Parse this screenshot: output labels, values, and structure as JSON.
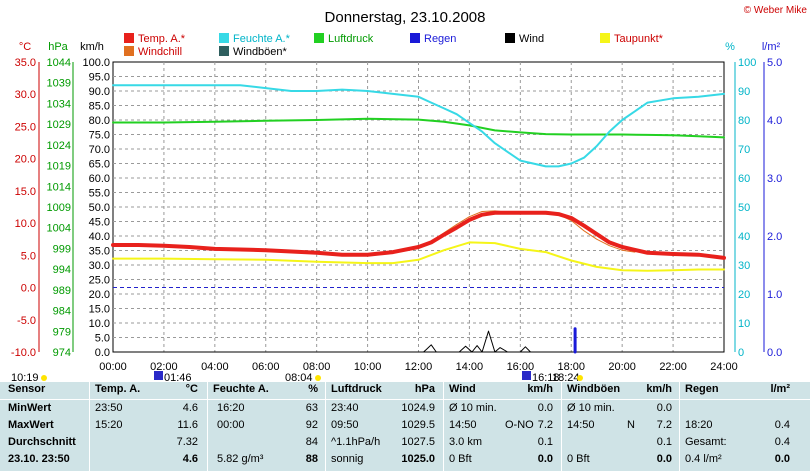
{
  "title": "Donnerstag, 23.10.2008",
  "credit": "© Weber Mike",
  "legend": [
    {
      "label": "Temp. A.*",
      "color": "#e8211c"
    },
    {
      "label": "Feuchte A.*",
      "color": "#37d9e6"
    },
    {
      "label": "Luftdruck",
      "color": "#22d022"
    },
    {
      "label": "Regen",
      "color": "#1a1ad8"
    },
    {
      "label": "Wind",
      "color": "#000000"
    },
    {
      "label": "Taupunkt*",
      "color": "#f5f518"
    },
    {
      "label": "Windchill",
      "color": "#e07020"
    },
    {
      "label": "Windböen*",
      "color": "#2f5f5f"
    }
  ],
  "axis_headers": {
    "temp": "°C",
    "hpa": "hPa",
    "kmh": "km/h",
    "pct": "%",
    "rain": "l/m²"
  },
  "markers": {
    "left_time": "10:19",
    "t1": "01:46",
    "t2": "08:04",
    "t3": "16:18",
    "t4": "18:24"
  },
  "chart_data": {
    "type": "line",
    "title": "Donnerstag, 23.10.2008",
    "x_ticks": [
      "00:00",
      "02:00",
      "04:00",
      "06:00",
      "08:00",
      "10:00",
      "12:00",
      "14:00",
      "16:00",
      "18:00",
      "20:00",
      "22:00",
      "24:00"
    ],
    "temp_ticks": [
      "35.0",
      "30.0",
      "25.0",
      "20.0",
      "15.0",
      "10.0",
      "5.0",
      "0.0",
      "-5.0",
      "-10.0"
    ],
    "hpa_ticks": [
      "1044",
      "1039",
      "1034",
      "1029",
      "1024",
      "1019",
      "1014",
      "1009",
      "1004",
      "999",
      "994",
      "989",
      "984",
      "979",
      "974"
    ],
    "kmh_ticks": [
      "100.0",
      "95.0",
      "90.0",
      "85.0",
      "80.0",
      "75.0",
      "70.0",
      "65.0",
      "60.0",
      "55.0",
      "50.0",
      "45.0",
      "40.0",
      "35.0",
      "30.0",
      "25.0",
      "20.0",
      "15.0",
      "10.0",
      "5.0",
      "0.0"
    ],
    "pct_ticks": [
      "100",
      "90",
      "80",
      "70",
      "60",
      "50",
      "40",
      "30",
      "20",
      "10",
      "0"
    ],
    "rain_ticks": [
      "5.0",
      "4.0",
      "3.0",
      "2.0",
      "1.0",
      "0.0"
    ],
    "temp_range": [
      -10,
      35
    ],
    "hpa_range": [
      974,
      1044
    ],
    "kmh_range": [
      0,
      100
    ],
    "pct_range": [
      0,
      100
    ],
    "rain_range": [
      0,
      5
    ],
    "zero_line_temp": 0,
    "series": [
      {
        "name": "Temp. A.*",
        "axis": "temp",
        "color": "#e8211c",
        "width": 4,
        "x": [
          0,
          1,
          2,
          3,
          4,
          5,
          6,
          7,
          8,
          9,
          10,
          11,
          12,
          12.5,
          13,
          13.5,
          14,
          14.5,
          15,
          16,
          17,
          17.5,
          18,
          18.5,
          19,
          19.5,
          20,
          21,
          22,
          23,
          24
        ],
        "y": [
          6.6,
          6.6,
          6.5,
          6.3,
          6.0,
          5.9,
          5.8,
          5.6,
          5.4,
          5.1,
          5.1,
          5.5,
          6.3,
          7.0,
          8.2,
          9.3,
          10.5,
          11.3,
          11.6,
          11.6,
          11.6,
          11.4,
          10.8,
          9.6,
          8.3,
          7.0,
          6.3,
          5.4,
          5.2,
          5.1,
          4.6
        ]
      },
      {
        "name": "Windchill",
        "axis": "temp",
        "color": "#e07020",
        "width": 1,
        "x": [
          12,
          12.5,
          13,
          13.5,
          14,
          14.5,
          15,
          15.5,
          16,
          17,
          17.5,
          18,
          18.5,
          19,
          19.5,
          20,
          20.5
        ],
        "y": [
          6.3,
          7.1,
          8.5,
          9.8,
          11.0,
          11.8,
          11.9,
          11.7,
          11.5,
          11.4,
          11.3,
          10.4,
          8.8,
          7.5,
          6.5,
          5.8,
          5.5
        ]
      },
      {
        "name": "Taupunkt*",
        "axis": "temp",
        "color": "#f5f518",
        "width": 2,
        "x": [
          0,
          2,
          4,
          6,
          8,
          10,
          11,
          12,
          13,
          14,
          15,
          16,
          17,
          18,
          19,
          20,
          21,
          22,
          23,
          24
        ],
        "y": [
          4.5,
          4.5,
          4.4,
          4.3,
          4.0,
          3.8,
          3.8,
          4.3,
          5.8,
          7.0,
          6.9,
          6.0,
          5.5,
          4.2,
          3.2,
          2.7,
          2.6,
          2.7,
          2.8,
          2.8
        ]
      },
      {
        "name": "Feuchte A.*",
        "axis": "pct",
        "color": "#37d9e6",
        "width": 2,
        "x": [
          0,
          1,
          2,
          3,
          4,
          5,
          6,
          7,
          8,
          9,
          10,
          11,
          12,
          12.5,
          13,
          13.5,
          14,
          14.5,
          15,
          15.5,
          16,
          16.5,
          17,
          17.5,
          18,
          18.5,
          19,
          19.5,
          20,
          20.5,
          21,
          22,
          23,
          24
        ],
        "y": [
          92,
          92,
          92,
          92,
          92,
          92,
          91,
          90,
          90,
          90.5,
          90,
          89,
          88,
          86,
          84,
          82,
          79,
          76,
          72,
          69,
          66,
          65,
          64,
          64,
          65,
          67,
          71,
          76,
          80,
          83,
          86,
          87.5,
          88,
          89
        ]
      },
      {
        "name": "Luftdruck",
        "axis": "hpa",
        "color": "#22d022",
        "width": 2,
        "x": [
          0,
          2,
          4,
          6,
          8,
          10,
          12,
          13,
          14,
          15,
          16,
          17,
          18,
          19,
          20,
          21,
          22,
          23,
          24
        ],
        "y": [
          1029.4,
          1029.4,
          1029.6,
          1029.8,
          1030.0,
          1030.3,
          1030.1,
          1029.6,
          1028.7,
          1027.5,
          1027.0,
          1026.6,
          1026.5,
          1026.5,
          1026.5,
          1026.4,
          1026.3,
          1026.1,
          1025.8
        ]
      },
      {
        "name": "Wind",
        "axis": "kmh",
        "color": "#000000",
        "width": 1,
        "x": [
          0,
          12.2,
          12.35,
          12.5,
          12.7,
          13,
          13.6,
          13.85,
          14.1,
          14.3,
          14.5,
          14.75,
          15,
          15.2,
          15.5,
          16,
          16.2,
          16.4,
          16.6,
          24
        ],
        "y": [
          0,
          0,
          1.2,
          2.5,
          0,
          0,
          0,
          2.0,
          0,
          2.2,
          0,
          7.2,
          0,
          1.5,
          0,
          0,
          1.8,
          0,
          0,
          0
        ]
      },
      {
        "name": "Regen",
        "axis": "rain",
        "color": "#1a1ad8",
        "width": 3,
        "x": [
          18.15,
          18.15
        ],
        "y": [
          0,
          0.4
        ]
      }
    ]
  },
  "table": {
    "headers": {
      "sensor": "Sensor",
      "temp": "Temp. A.",
      "temp_unit": "°C",
      "hum": "Feuchte A.",
      "hum_unit": "%",
      "press": "Luftdruck",
      "press_unit": "hPa",
      "wind": "Wind",
      "wind_unit": "km/h",
      "gust": "Windböen",
      "gust_unit": "km/h",
      "rain": "Regen",
      "rain_unit": "l/m²"
    },
    "rows": [
      {
        "label": "MinWert",
        "temp_time": "23:50",
        "temp_val": "4.6",
        "hum_time": "16:20",
        "hum_val": "63",
        "press_time": "23:40",
        "press_val": "1024.9",
        "wind_a": "Ø 10 min.",
        "wind_b": "",
        "wind_val": "0.0",
        "gust_a": "Ø 10 min.",
        "gust_b": "",
        "gust_val": "0.0",
        "rain_a": "",
        "rain_val": ""
      },
      {
        "label": "MaxWert",
        "temp_time": "15:20",
        "temp_val": "11.6",
        "hum_time": "00:00",
        "hum_val": "92",
        "press_time": "09:50",
        "press_val": "1029.5",
        "wind_a": "14:50",
        "wind_b": "O-NO",
        "wind_val": "7.2",
        "gust_a": "14:50",
        "gust_b": "N",
        "gust_val": "7.2",
        "rain_a": "18:20",
        "rain_val": "0.4"
      },
      {
        "label": "Durchschnitt",
        "temp_time": "",
        "temp_val": "7.32",
        "hum_time": "",
        "hum_val": "84",
        "press_time": "^1.1hPa/h",
        "press_val": "1027.5",
        "wind_a": "3.0 km",
        "wind_b": "",
        "wind_val": "0.1",
        "gust_a": "",
        "gust_b": "",
        "gust_val": "0.1",
        "rain_a": "Gesamt:",
        "rain_val": "0.4"
      },
      {
        "label": "23.10. 23:50",
        "temp_time": "",
        "temp_val": "4.6",
        "hum_time": "5.82 g/m³",
        "hum_val": "88",
        "press_time": "sonnig",
        "press_val": "1025.0",
        "wind_a": "0 Bft",
        "wind_b": "",
        "wind_val": "0.0",
        "gust_a": "0 Bft",
        "gust_b": "",
        "gust_val": "0.0",
        "rain_a": "0.4 l/m²",
        "rain_val": "0.0"
      }
    ]
  }
}
